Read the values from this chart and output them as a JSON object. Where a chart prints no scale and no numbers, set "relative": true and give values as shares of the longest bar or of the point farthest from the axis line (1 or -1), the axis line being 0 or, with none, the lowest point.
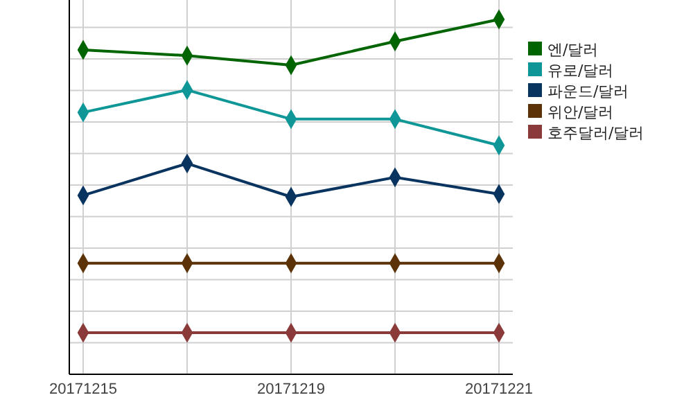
{
  "chart_data": {
    "type": "line",
    "relative": true,
    "categories": [
      "20171215",
      null,
      "20171219",
      null,
      "20171221"
    ],
    "series": [
      {
        "name": "엔/달러",
        "color": "#006400",
        "values": [
          0.914,
          0.898,
          0.871,
          0.938,
          1
        ]
      },
      {
        "name": "유로/달러",
        "color": "#0f9696",
        "values": [
          0.738,
          0.801,
          0.719,
          0.719,
          0.645
        ]
      },
      {
        "name": "파운드/달러",
        "color": "#0a3460",
        "values": [
          0.504,
          0.594,
          0.5,
          0.555,
          0.508
        ]
      },
      {
        "name": "위안/달러",
        "color": "#5c3208",
        "values": [
          0.313,
          0.313,
          0.313,
          0.313,
          0.313
        ]
      },
      {
        "name": "호주달러/달러",
        "color": "#8b3a3a",
        "values": [
          0.117,
          0.117,
          0.117,
          0.117,
          0.117
        ]
      }
    ],
    "grid": true,
    "legend": "top right",
    "marker": "diamond",
    "line_style": "solid"
  }
}
